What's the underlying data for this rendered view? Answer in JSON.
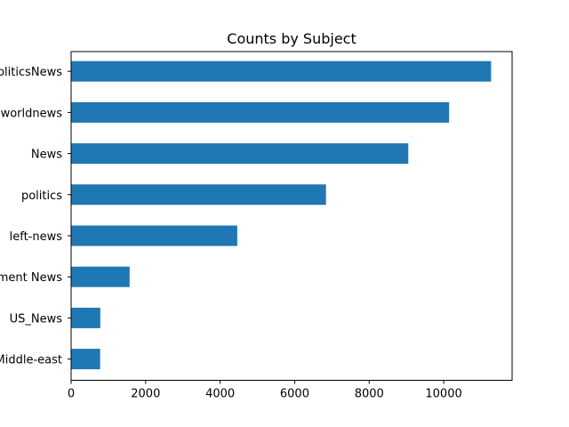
{
  "chart_data": {
    "type": "bar",
    "orientation": "horizontal",
    "title": "Counts by Subject",
    "xlabel": "",
    "ylabel": "",
    "categories": [
      "politicsNews",
      "worldnews",
      "News",
      "politics",
      "left-news",
      "Government News",
      "US_News",
      "Middle-east"
    ],
    "values": [
      11272,
      10145,
      9050,
      6841,
      4459,
      1570,
      783,
      778
    ],
    "xlim": [
      0,
      11836
    ],
    "xticks": [
      0,
      2000,
      4000,
      6000,
      8000,
      10000
    ],
    "xtick_labels": [
      "0",
      "2000",
      "4000",
      "6000",
      "8000",
      "10000"
    ],
    "grid": false,
    "legend": "none",
    "bar_color": "#1f77b4"
  }
}
